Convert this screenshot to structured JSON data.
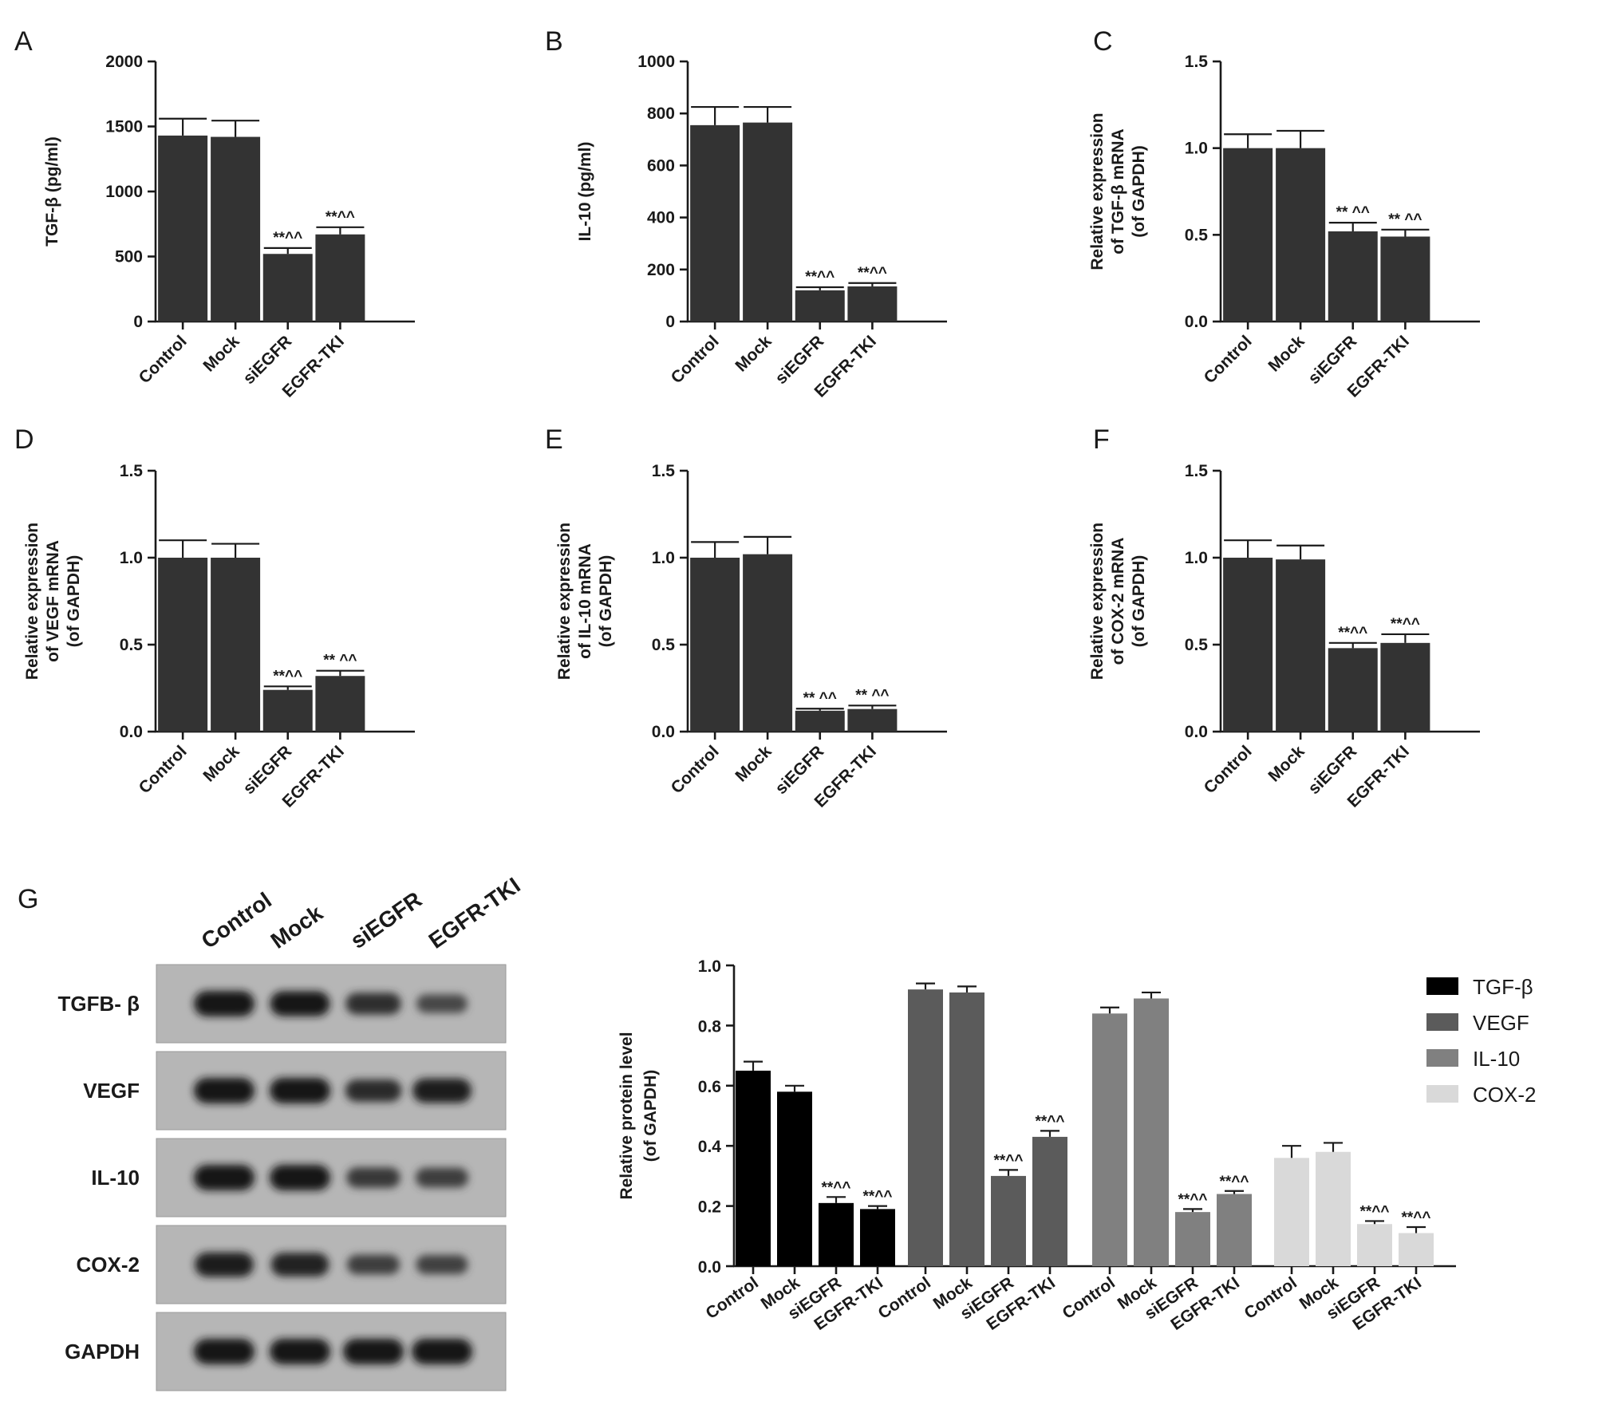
{
  "chart_data": [
    {
      "panel": "A",
      "type": "bar",
      "categories": [
        "Control",
        "Mock",
        "siEGFR",
        "EGFR-TKI"
      ],
      "values": [
        1430,
        1420,
        520,
        670
      ],
      "errors": [
        130,
        125,
        45,
        55
      ],
      "significance": [
        "",
        "",
        "**^^",
        "**^^"
      ],
      "ylabel": "TGF-β (pg/ml)",
      "ylim": [
        0,
        2000
      ],
      "yticks": [
        0,
        500,
        1000,
        1500,
        2000
      ],
      "ytick_labels": [
        "0",
        "500",
        "1000",
        "1500",
        "2000"
      ]
    },
    {
      "panel": "B",
      "type": "bar",
      "categories": [
        "Control",
        "Mock",
        "siEGFR",
        "EGFR-TKI"
      ],
      "values": [
        755,
        765,
        120,
        135
      ],
      "errors": [
        70,
        60,
        12,
        13
      ],
      "significance": [
        "",
        "",
        "**^^",
        "**^^"
      ],
      "ylabel": "IL-10 (pg/ml)",
      "ylim": [
        0,
        1000
      ],
      "yticks": [
        0,
        200,
        400,
        600,
        800,
        1000
      ],
      "ytick_labels": [
        "0",
        "200",
        "400",
        "600",
        "800",
        "1000"
      ]
    },
    {
      "panel": "C",
      "type": "bar",
      "categories": [
        "Control",
        "Mock",
        "siEGFR",
        "EGFR-TKI"
      ],
      "values": [
        1.0,
        1.0,
        0.52,
        0.49
      ],
      "errors": [
        0.08,
        0.1,
        0.05,
        0.04
      ],
      "significance": [
        "",
        "",
        "** ^^",
        "** ^^"
      ],
      "ylabel_lines": [
        "Relative expression",
        "of TGF-β mRNA",
        "(of GAPDH)"
      ],
      "ylim": [
        0,
        1.5
      ],
      "yticks": [
        0,
        0.5,
        1.0,
        1.5
      ],
      "ytick_labels": [
        "0.0",
        "0.5",
        "1.0",
        "1.5"
      ]
    },
    {
      "panel": "D",
      "type": "bar",
      "categories": [
        "Control",
        "Mock",
        "siEGFR",
        "EGFR-TKI"
      ],
      "values": [
        1.0,
        1.0,
        0.24,
        0.32
      ],
      "errors": [
        0.1,
        0.08,
        0.02,
        0.03
      ],
      "significance": [
        "",
        "",
        "**^^",
        "** ^^"
      ],
      "ylabel_lines": [
        "Relative expression",
        "of VEGF mRNA",
        "(of GAPDH)"
      ],
      "ylim": [
        0,
        1.5
      ],
      "yticks": [
        0,
        0.5,
        1.0,
        1.5
      ],
      "ytick_labels": [
        "0.0",
        "0.5",
        "1.0",
        "1.5"
      ]
    },
    {
      "panel": "E",
      "type": "bar",
      "categories": [
        "Control",
        "Mock",
        "siEGFR",
        "EGFR-TKI"
      ],
      "values": [
        1.0,
        1.02,
        0.12,
        0.13
      ],
      "errors": [
        0.09,
        0.1,
        0.012,
        0.02
      ],
      "significance": [
        "",
        "",
        "** ^^",
        "** ^^"
      ],
      "ylabel_lines": [
        "Relative expression",
        "of IL-10 mRNA",
        "(of GAPDH)"
      ],
      "ylim": [
        0,
        1.5
      ],
      "yticks": [
        0,
        0.5,
        1.0,
        1.5
      ],
      "ytick_labels": [
        "0.0",
        "0.5",
        "1.0",
        "1.5"
      ]
    },
    {
      "panel": "F",
      "type": "bar",
      "categories": [
        "Control",
        "Mock",
        "siEGFR",
        "EGFR-TKI"
      ],
      "values": [
        1.0,
        0.99,
        0.48,
        0.51
      ],
      "errors": [
        0.1,
        0.08,
        0.03,
        0.05
      ],
      "significance": [
        "",
        "",
        "**^^",
        "**^^"
      ],
      "ylabel_lines": [
        "Relative expression",
        "of COX-2 mRNA",
        "(of GAPDH)"
      ],
      "ylim": [
        0,
        1.5
      ],
      "yticks": [
        0,
        0.5,
        1.0,
        1.5
      ],
      "ytick_labels": [
        "0.0",
        "0.5",
        "1.0",
        "1.5"
      ]
    },
    {
      "panel": "G",
      "type": "bar",
      "categories": [
        "Control",
        "Mock",
        "siEGFR",
        "EGFR-TKI"
      ],
      "series": [
        {
          "name": "TGF-β",
          "color": "#000000",
          "values": [
            0.65,
            0.58,
            0.21,
            0.19
          ],
          "errors": [
            0.03,
            0.02,
            0.02,
            0.01
          ],
          "significance": [
            "",
            "",
            "**^^",
            "**^^"
          ]
        },
        {
          "name": "VEGF",
          "color": "#5b5b5b",
          "values": [
            0.92,
            0.91,
            0.3,
            0.43
          ],
          "errors": [
            0.02,
            0.02,
            0.02,
            0.02
          ],
          "significance": [
            "",
            "",
            "**^^",
            "**^^"
          ]
        },
        {
          "name": "IL-10",
          "color": "#808080",
          "values": [
            0.84,
            0.89,
            0.18,
            0.24
          ],
          "errors": [
            0.02,
            0.02,
            0.01,
            0.01
          ],
          "significance": [
            "",
            "",
            "**^^",
            "**^^"
          ]
        },
        {
          "name": "COX-2",
          "color": "#d9d9d9",
          "values": [
            0.36,
            0.38,
            0.14,
            0.11
          ],
          "errors": [
            0.04,
            0.03,
            0.01,
            0.02
          ],
          "significance": [
            "",
            "",
            "**^^",
            "**^^"
          ]
        }
      ],
      "ylabel_lines": [
        "Relative protein level",
        "(of  GAPDH)"
      ],
      "ylim": [
        0,
        1.0
      ],
      "yticks": [
        0,
        0.2,
        0.4,
        0.6,
        0.8,
        1.0
      ],
      "ytick_labels": [
        "0.0",
        "0.2",
        "0.4",
        "0.6",
        "0.8",
        "1.0"
      ],
      "legend": "top-right"
    }
  ],
  "blot": {
    "panel": "G",
    "lanes": [
      "Control",
      "Mock",
      "siEGFR",
      "EGFR-TKI"
    ],
    "rows": [
      {
        "label": "TGFB- β",
        "intensity": [
          1.0,
          0.95,
          0.7,
          0.45
        ]
      },
      {
        "label": "VEGF",
        "intensity": [
          1.0,
          1.0,
          0.75,
          0.9
        ]
      },
      {
        "label": "IL-10",
        "intensity": [
          1.0,
          1.0,
          0.6,
          0.55
        ]
      },
      {
        "label": "COX-2",
        "intensity": [
          0.9,
          0.85,
          0.55,
          0.5
        ]
      },
      {
        "label": "GAPDH",
        "intensity": [
          1.0,
          1.0,
          1.0,
          1.0
        ]
      }
    ]
  }
}
